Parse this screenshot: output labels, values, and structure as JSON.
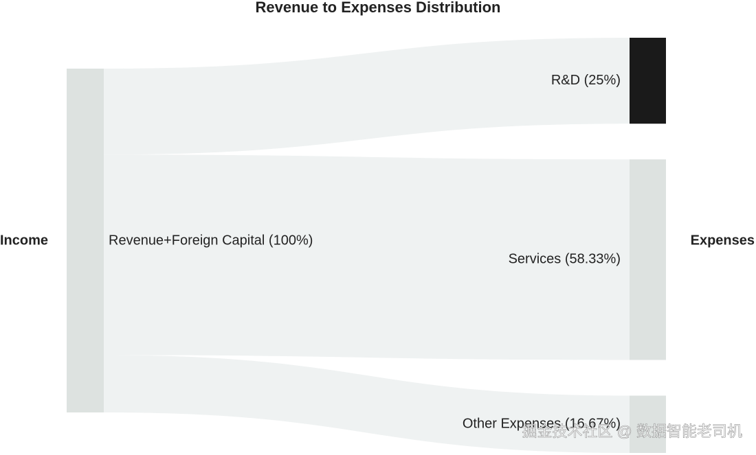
{
  "chart_data": {
    "type": "sankey",
    "title": "Revenue to Expenses Distribution",
    "left_label": "Income",
    "right_label": "Expenses",
    "source": {
      "label": "Revenue+Foreign Capital (100%)",
      "value": 100,
      "color": "#dde2e0"
    },
    "targets": [
      {
        "label": "R&D (25%)",
        "value": 25,
        "color": "#1a1a1a"
      },
      {
        "label": "Services (58.33%)",
        "value": 58.33,
        "color": "#dde2e0"
      },
      {
        "label": "Other Expenses (16.67%)",
        "value": 16.67,
        "color": "#dde2e0"
      }
    ],
    "flow_color": "#eff2f2",
    "watermark": "掘金技术社区 @ 数据智能老司机"
  }
}
